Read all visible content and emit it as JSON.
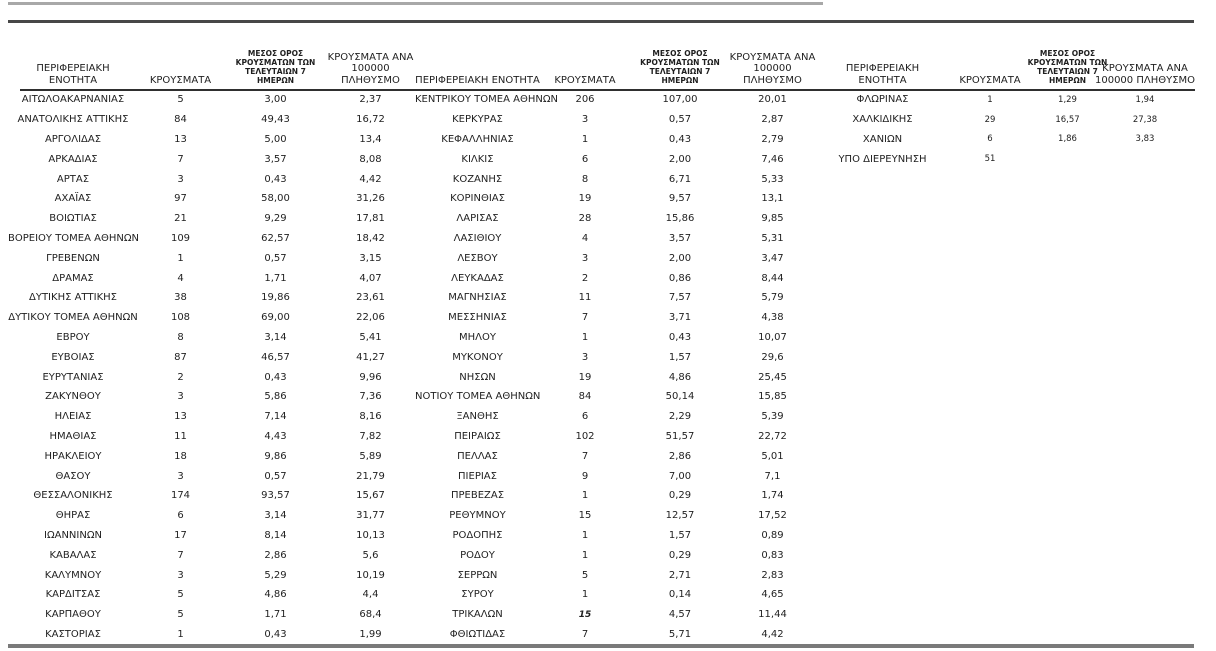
{
  "colors": {
    "background": "#ffffff",
    "text": "#1f1f1f",
    "top_thin_line": "#a8a8a8",
    "top_thick_line": "#474747",
    "header_underline": "#2f2f2f",
    "bottom_line": "#7a7a7a"
  },
  "tables": [
    {
      "headers": {
        "name": [
          "ΠΕΡΙΦΕΡΕΙΑΚΗ",
          "ΕΝΟΤΗΤΑ"
        ],
        "cases": [
          "ΚΡΟΥΣΜΑΤΑ"
        ],
        "avg7": [
          "ΜΕΣΟΣ ΟΡΟΣ",
          "ΚΡΟΥΣΜΑΤΩΝ ΤΩΝ",
          "ΤΕΛΕΥΤΑΙΩΝ 7",
          "ΗΜΕΡΩΝ"
        ],
        "per100k": [
          "ΚΡΟΥΣΜΑΤΑ ΑΝΑ",
          "100000",
          "ΠΛΗΘΥΣΜΟ"
        ]
      },
      "rows": [
        [
          "ΑΙΤΩΛΟΑΚΑΡΝΑΝΙΑΣ",
          "5",
          "3,00",
          "2,37"
        ],
        [
          "ΑΝΑΤΟΛΙΚΗΣ ΑΤΤΙΚΗΣ",
          "84",
          "49,43",
          "16,72"
        ],
        [
          "ΑΡΓΟΛΙΔΑΣ",
          "13",
          "5,00",
          "13,4"
        ],
        [
          "ΑΡΚΑΔΙΑΣ",
          "7",
          "3,57",
          "8,08"
        ],
        [
          "ΑΡΤΑΣ",
          "3",
          "0,43",
          "4,42"
        ],
        [
          "ΑΧΑΪΑΣ",
          "97",
          "58,00",
          "31,26"
        ],
        [
          "ΒΟΙΩΤΙΑΣ",
          "21",
          "9,29",
          "17,81"
        ],
        [
          "ΒΟΡΕΙΟΥ ΤΟΜΕΑ ΑΘΗΝΩΝ",
          "109",
          "62,57",
          "18,42"
        ],
        [
          "ΓΡΕΒΕΝΩΝ",
          "1",
          "0,57",
          "3,15"
        ],
        [
          "ΔΡΑΜΑΣ",
          "4",
          "1,71",
          "4,07"
        ],
        [
          "ΔΥΤΙΚΗΣ ΑΤΤΙΚΗΣ",
          "38",
          "19,86",
          "23,61"
        ],
        [
          "ΔΥΤΙΚΟΥ ΤΟΜΕΑ ΑΘΗΝΩΝ",
          "108",
          "69,00",
          "22,06"
        ],
        [
          "ΕΒΡΟΥ",
          "8",
          "3,14",
          "5,41"
        ],
        [
          "ΕΥΒΟΙΑΣ",
          "87",
          "46,57",
          "41,27"
        ],
        [
          "ΕΥΡΥΤΑΝΙΑΣ",
          "2",
          "0,43",
          "9,96"
        ],
        [
          "ΖΑΚΥΝΘΟΥ",
          "3",
          "5,86",
          "7,36"
        ],
        [
          "ΗΛΕΙΑΣ",
          "13",
          "7,14",
          "8,16"
        ],
        [
          "ΗΜΑΘΙΑΣ",
          "11",
          "4,43",
          "7,82"
        ],
        [
          "ΗΡΑΚΛΕΙΟΥ",
          "18",
          "9,86",
          "5,89"
        ],
        [
          "ΘΑΣΟΥ",
          "3",
          "0,57",
          "21,79"
        ],
        [
          "ΘΕΣΣΑΛΟΝΙΚΗΣ",
          "174",
          "93,57",
          "15,67"
        ],
        [
          "ΘΗΡΑΣ",
          "6",
          "3,14",
          "31,77"
        ],
        [
          "ΙΩΑΝΝΙΝΩΝ",
          "17",
          "8,14",
          "10,13"
        ],
        [
          "ΚΑΒΑΛΑΣ",
          "7",
          "2,86",
          "5,6"
        ],
        [
          "ΚΑΛΥΜΝΟΥ",
          "3",
          "5,29",
          "10,19"
        ],
        [
          "ΚΑΡΔΙΤΣΑΣ",
          "5",
          "4,86",
          "4,4"
        ],
        [
          "ΚΑΡΠΑΘΟΥ",
          "5",
          "1,71",
          "68,4"
        ],
        [
          "ΚΑΣΤΟΡΙΑΣ",
          "1",
          "0,43",
          "1,99"
        ]
      ]
    },
    {
      "headers": {
        "name": [
          "ΠΕΡΙΦΕΡΕΙΑΚΗ ΕΝΟΤΗΤΑ"
        ],
        "cases": [
          "ΚΡΟΥΣΜΑΤΑ"
        ],
        "avg7": [
          "ΜΕΣΟΣ ΟΡΟΣ",
          "ΚΡΟΥΣΜΑΤΩΝ ΤΩΝ",
          "ΤΕΛΕΥΤΑΙΩΝ 7",
          "ΗΜΕΡΩΝ"
        ],
        "per100k": [
          "ΚΡΟΥΣΜΑΤΑ ΑΝΑ",
          "100000",
          "ΠΛΗΘΥΣΜΟ"
        ]
      },
      "italic_bold_cases_rows": [
        26
      ],
      "rows": [
        [
          "ΚΕΝΤΡΙΚΟΥ ΤΟΜΕΑ ΑΘΗΝΩΝ",
          "206",
          "107,00",
          "20,01"
        ],
        [
          "ΚΕΡΚΥΡΑΣ",
          "3",
          "0,57",
          "2,87"
        ],
        [
          "ΚΕΦΑΛΛΗΝΙΑΣ",
          "1",
          "0,43",
          "2,79"
        ],
        [
          "ΚΙΛΚΙΣ",
          "6",
          "2,00",
          "7,46"
        ],
        [
          "ΚΟΖΑΝΗΣ",
          "8",
          "6,71",
          "5,33"
        ],
        [
          "ΚΟΡΙΝΘΙΑΣ",
          "19",
          "9,57",
          "13,1"
        ],
        [
          "ΛΑΡΙΣΑΣ",
          "28",
          "15,86",
          "9,85"
        ],
        [
          "ΛΑΣΙΘΙΟΥ",
          "4",
          "3,57",
          "5,31"
        ],
        [
          "ΛΕΣΒΟΥ",
          "3",
          "2,00",
          "3,47"
        ],
        [
          "ΛΕΥΚΑΔΑΣ",
          "2",
          "0,86",
          "8,44"
        ],
        [
          "ΜΑΓΝΗΣΙΑΣ",
          "11",
          "7,57",
          "5,79"
        ],
        [
          "ΜΕΣΣΗΝΙΑΣ",
          "7",
          "3,71",
          "4,38"
        ],
        [
          "ΜΗΛΟΥ",
          "1",
          "0,43",
          "10,07"
        ],
        [
          "ΜΥΚΟΝΟΥ",
          "3",
          "1,57",
          "29,6"
        ],
        [
          "ΝΗΣΩΝ",
          "19",
          "4,86",
          "25,45"
        ],
        [
          "ΝΟΤΙΟΥ ΤΟΜΕΑ ΑΘΗΝΩΝ",
          "84",
          "50,14",
          "15,85"
        ],
        [
          "ΞΑΝΘΗΣ",
          "6",
          "2,29",
          "5,39"
        ],
        [
          "ΠΕΙΡΑΙΩΣ",
          "102",
          "51,57",
          "22,72"
        ],
        [
          "ΠΕΛΛΑΣ",
          "7",
          "2,86",
          "5,01"
        ],
        [
          "ΠΙΕΡΙΑΣ",
          "9",
          "7,00",
          "7,1"
        ],
        [
          "ΠΡΕΒΕΖΑΣ",
          "1",
          "0,29",
          "1,74"
        ],
        [
          "ΡΕΘΥΜΝΟΥ",
          "15",
          "12,57",
          "17,52"
        ],
        [
          "ΡΟΔΟΠΗΣ",
          "1",
          "1,57",
          "0,89"
        ],
        [
          "ΡΟΔΟΥ",
          "1",
          "0,29",
          "0,83"
        ],
        [
          "ΣΕΡΡΩΝ",
          "5",
          "2,71",
          "2,83"
        ],
        [
          "ΣΥΡΟΥ",
          "1",
          "0,14",
          "4,65"
        ],
        [
          "ΤΡΙΚΑΛΩΝ",
          "15",
          "4,57",
          "11,44"
        ],
        [
          "ΦΘΙΩΤΙΔΑΣ",
          "7",
          "5,71",
          "4,42"
        ]
      ]
    },
    {
      "headers": {
        "name": [
          "ΠΕΡΙΦΕΡΕΙΑΚΗ",
          "ΕΝΟΤΗΤΑ"
        ],
        "cases": [
          "ΚΡΟΥΣΜΑΤΑ"
        ],
        "avg7": [
          "ΜΕΣΟΣ ΟΡΟΣ",
          "ΚΡΟΥΣΜΑΤΩΝ ΤΩΝ",
          "ΤΕΛΕΥΤΑΙΩΝ 7",
          "ΗΜΕΡΩΝ"
        ],
        "per100k": [
          "ΚΡΟΥΣΜΑΤΑ ΑΝΑ",
          "100000 ΠΛΗΘΥΣΜΟ"
        ]
      },
      "rows": [
        [
          "ΦΛΩΡΙΝΑΣ",
          "1",
          "1,29",
          "1,94"
        ],
        [
          "ΧΑΛΚΙΔΙΚΗΣ",
          "29",
          "16,57",
          "27,38"
        ],
        [
          "ΧΑΝΙΩΝ",
          "6",
          "1,86",
          "3,83"
        ],
        [
          "ΥΠΟ ΔΙΕΡΕΥΝΗΣΗ",
          "51",
          "",
          ""
        ]
      ]
    }
  ]
}
